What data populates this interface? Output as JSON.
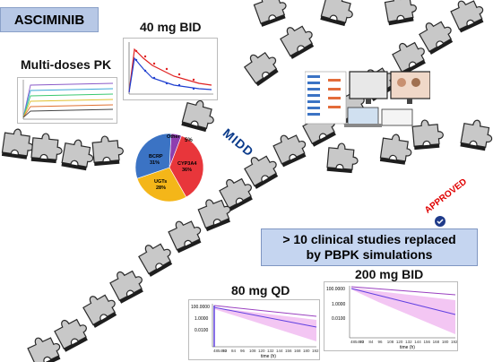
{
  "title": "ASCIMINIB",
  "labels": {
    "bid40": "40 mg BID",
    "multidose": "Multi-doses PK",
    "qd80": "80 mg QD",
    "bid200": "200 mg BID",
    "midd": "MIDD"
  },
  "approved": "APPROVED",
  "summary": {
    "line1": "> 10 clinical studies replaced",
    "line2": "by PBPK simulations"
  },
  "pie": {
    "slices": [
      {
        "name": "Other",
        "pct": "5%",
        "value": 5,
        "color": "#8e3fb0"
      },
      {
        "name": "CYP3A4",
        "pct": "36%",
        "value": 36,
        "color": "#e8363b"
      },
      {
        "name": "UGTs",
        "pct": "28%",
        "value": 28,
        "color": "#f4b619"
      },
      {
        "name": "BCRP",
        "pct": "31%",
        "value": 31,
        "color": "#3b73c4"
      }
    ]
  },
  "plot80": {
    "yticks": [
      "100.0000",
      "1.0000",
      "0.0100"
    ],
    "xticks": [
      "485460",
      "72",
      "84",
      "96",
      "108",
      "120",
      "132",
      "144",
      "156",
      "168",
      "180",
      "192"
    ],
    "xlabel": "time (h)"
  },
  "plot200": {
    "yticks": [
      "100.0000",
      "1.0000",
      "0.0100"
    ],
    "xticks": [
      "485460",
      "72",
      "84",
      "96",
      "108",
      "120",
      "132",
      "144",
      "156",
      "168",
      "180",
      "192"
    ],
    "xlabel": "time (h)"
  },
  "colors": {
    "puzzle": "#c8c8c8",
    "puzzle_edge": "#2a2a2a",
    "box": "#c5d5f0",
    "title_box": "#b7c8e6",
    "stamp": "#e00000"
  }
}
